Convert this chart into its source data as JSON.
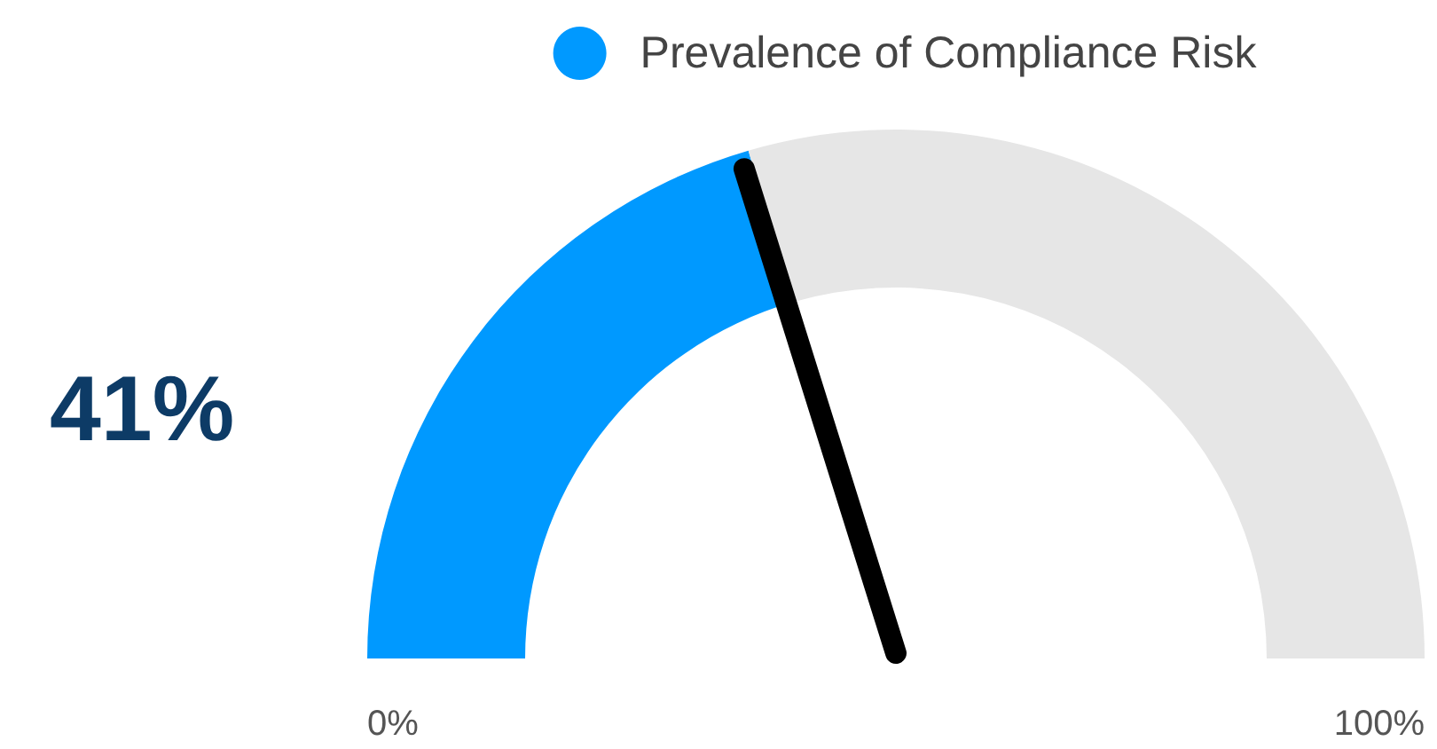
{
  "chart_data": {
    "type": "donut",
    "categories": [
      "Prevalence of Compliance Risk",
      null
    ],
    "values": [
      41,
      59
    ],
    "colors": [
      "#0099ff",
      "#e6e6e6"
    ],
    "value_labels": [
      "41%",
      null
    ],
    "needle": "Prevalence of Compliance Risk",
    "legend": "top",
    "annotations": [
      "0%",
      "100%"
    ]
  }
}
